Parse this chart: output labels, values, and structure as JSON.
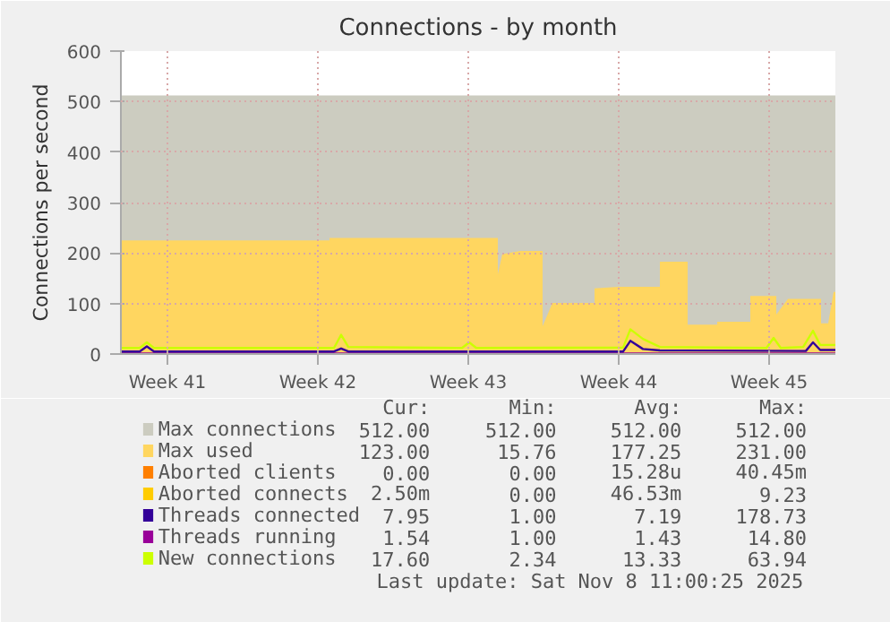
{
  "chart_data": {
    "type": "line",
    "title": "Connections - by month",
    "ylabel": "Connections per second",
    "xlim": [
      "2025-10-06T05:00",
      "2025-11-08T11:00"
    ],
    "xticks": [
      {
        "value": "2025-10-08T09:00",
        "label": "Week 41"
      },
      {
        "value": "2025-10-15T09:00",
        "label": "Week 42"
      },
      {
        "value": "2025-10-22T09:00",
        "label": "Week 43"
      },
      {
        "value": "2025-10-29T09:00",
        "label": "Week 44"
      },
      {
        "value": "2025-11-05T09:00",
        "label": "Week 45"
      }
    ],
    "ylim": [
      0,
      600
    ],
    "yticks": [
      0,
      100,
      200,
      300,
      400,
      500,
      600
    ],
    "grid": true,
    "legend": "bottom",
    "series": [
      {
        "name": "Max connections",
        "type": "area",
        "color": "#ccccc0",
        "x": [
          "2025-10-06T05:00",
          "2025-11-08T11:00"
        ],
        "values": [
          512,
          512
        ]
      },
      {
        "name": "Max used",
        "type": "area",
        "color": "#ffd660",
        "x": [
          "2025-10-06T05:00",
          "2025-10-15T22:00",
          "2025-10-15T22:00",
          "2025-10-23T18:00",
          "2025-10-23T18:00",
          "2025-10-23T23:00",
          "2025-10-24T19:00",
          "2025-10-25T20:00",
          "2025-10-25T20:00",
          "2025-10-26T07:00",
          "2025-10-28T06:00",
          "2025-10-28T06:00",
          "2025-10-29T09:00",
          "2025-10-31T07:00",
          "2025-10-31T07:00",
          "2025-11-01T14:00",
          "2025-11-01T14:00",
          "2025-11-02T23:00",
          "2025-11-02T23:00",
          "2025-11-04T12:00",
          "2025-11-04T12:00",
          "2025-11-05T17:00",
          "2025-11-05T17:00",
          "2025-11-06T06:00",
          "2025-11-07T19:00",
          "2025-11-07T19:00",
          "2025-11-08T03:00",
          "2025-11-08T09:00",
          "2025-11-08T11:00"
        ],
        "values": [
          225,
          225,
          230,
          230,
          158,
          198,
          204,
          204,
          55,
          101,
          101,
          130,
          133,
          133,
          183,
          183,
          58,
          58,
          64,
          64,
          115,
          115,
          78,
          109,
          109,
          61,
          61,
          123,
          123
        ]
      },
      {
        "name": "Aborted clients",
        "color": "#ff7f00"
      },
      {
        "name": "Aborted connects",
        "color": "#ffcc00"
      },
      {
        "name": "Threads connected",
        "color": "#330099",
        "x": [
          "2025-10-06T05:00",
          "2025-10-07T02:00",
          "2025-10-07T10:00",
          "2025-10-07T18:00",
          "2025-10-16T03:00",
          "2025-10-16T11:00",
          "2025-10-16T19:00",
          "2025-10-29T14:00",
          "2025-10-29T22:00",
          "2025-10-30T12:00",
          "2025-10-31T07:00",
          "2025-11-07T02:00",
          "2025-11-07T10:00",
          "2025-11-07T18:00",
          "2025-11-08T11:00"
        ],
        "values": [
          5,
          5,
          15,
          5,
          5,
          11,
          5,
          5,
          26,
          10,
          7,
          6,
          23,
          8,
          8
        ]
      },
      {
        "name": "Threads running",
        "color": "#990099",
        "x": [
          "2025-10-06T05:00",
          "2025-11-08T11:00"
        ],
        "values": [
          1,
          1
        ]
      },
      {
        "name": "New connections",
        "color": "#ccff00",
        "x": [
          "2025-10-06T05:00",
          "2025-10-07T02:00",
          "2025-10-07T10:00",
          "2025-10-07T18:00",
          "2025-10-16T03:00",
          "2025-10-16T11:00",
          "2025-10-16T19:00",
          "2025-10-22T02:00",
          "2025-10-22T10:00",
          "2025-10-22T18:00",
          "2025-10-29T14:00",
          "2025-10-29T22:00",
          "2025-10-30T12:00",
          "2025-10-31T07:00",
          "2025-11-05T06:00",
          "2025-11-05T14:00",
          "2025-11-05T22:00",
          "2025-11-06T23:00",
          "2025-11-07T10:00",
          "2025-11-07T18:00",
          "2025-11-08T11:00"
        ],
        "values": [
          12,
          12,
          23,
          12,
          12,
          38,
          14,
          12,
          23,
          12,
          13,
          49,
          30,
          14,
          12,
          32,
          12,
          14,
          46,
          18,
          18
        ]
      }
    ],
    "annotations": [
      "Cur:",
      "Min:",
      "Avg:",
      "Max:",
      "512.00",
      "512.00",
      "512.00",
      "512.00",
      "123.00",
      "15.76",
      "177.25",
      "231.00",
      "0.00",
      "0.00",
      "15.28u",
      "40.45m",
      "2.50m",
      "0.00",
      "46.53m",
      "9.23",
      "7.95",
      "1.00",
      "7.19",
      "178.73",
      "1.54",
      "1.00",
      "1.43",
      "14.80",
      "17.60",
      "2.34",
      "13.33",
      "63.94",
      "Last update: Sat Nov  8 11:00:25 2025"
    ]
  }
}
